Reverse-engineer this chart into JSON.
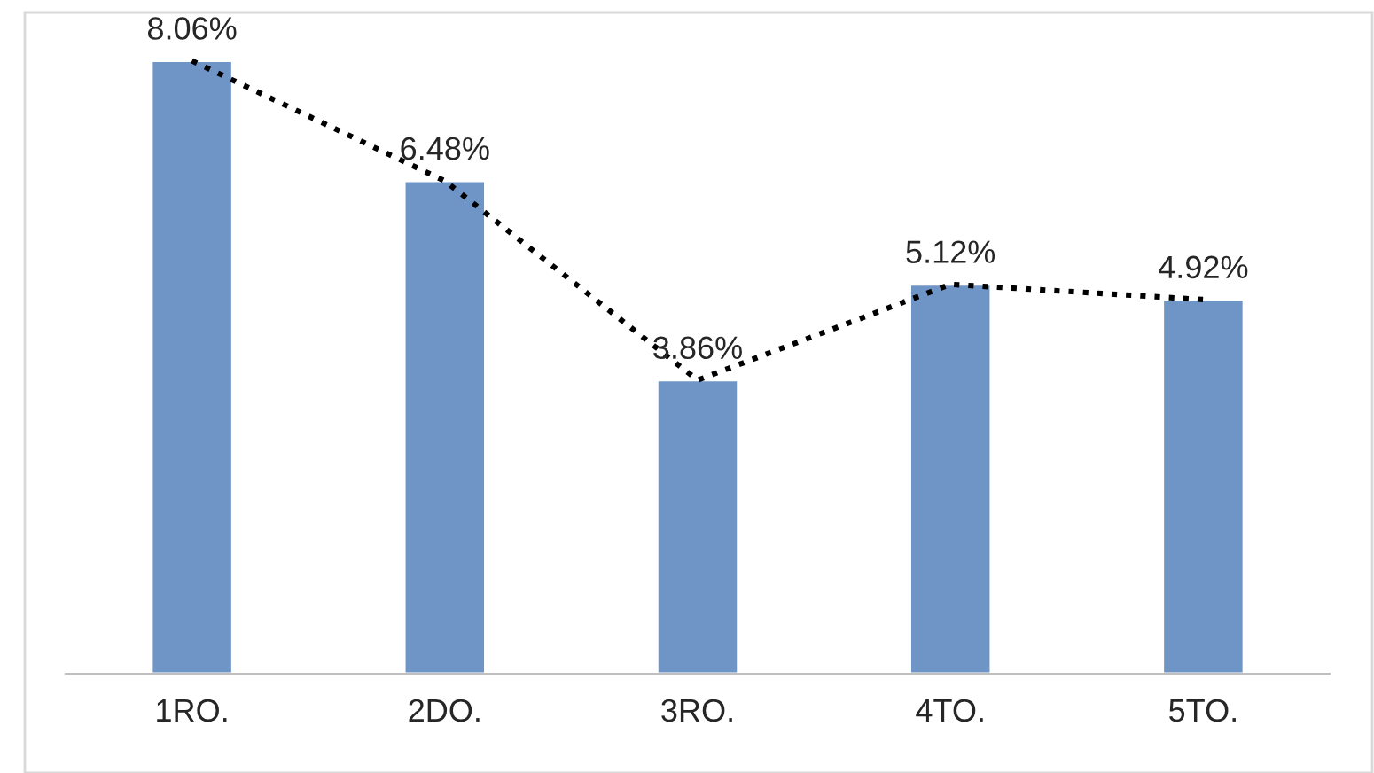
{
  "chart_data": {
    "type": "bar",
    "categories": [
      "1RO.",
      "2DO.",
      "3RO.",
      "4TO.",
      "5TO."
    ],
    "series": [
      {
        "color": "#6f95c6",
        "values": [
          8.06,
          6.48,
          3.86,
          5.12,
          4.92
        ],
        "value_labels": [
          "8.06%",
          "6.48%",
          "3.86%",
          "5.12%",
          "4.92%"
        ]
      },
      {
        "type": "line",
        "color": "#000000",
        "line_style": "dotted",
        "values": [
          8.06,
          6.48,
          3.86,
          5.12,
          4.92
        ]
      }
    ],
    "tick_labels": "x"
  }
}
